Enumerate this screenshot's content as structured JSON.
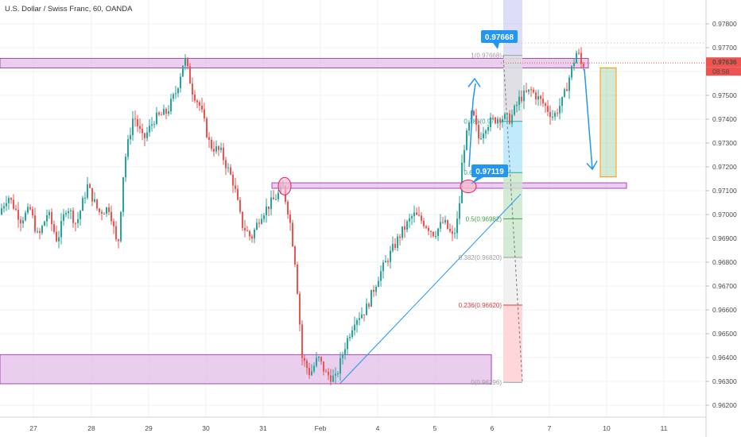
{
  "header": {
    "symbol_title": "U.S. Dollar / Swiss Franc, 60, OANDA"
  },
  "colors": {
    "up": "#26a69a",
    "down": "#ef5350",
    "zone_fill": "#e1bee7",
    "zone_stroke": "#ab47bc",
    "callout": "#2196f3",
    "trendline": "#2196f3",
    "price_badge": "#ef5350",
    "fib_red": "#e53935",
    "fib_green": "#43a047",
    "fib_gray": "#9e9e9e",
    "fib_teal": "#26a69a",
    "target_box": "#a5d6a7",
    "target_border": "#ff9800"
  },
  "chart_data": {
    "type": "candlestick",
    "symbol": "U.S. Dollar / Swiss Franc, 60, OANDA",
    "timeframe": "60",
    "x_tick_labels": [
      "27",
      "28",
      "29",
      "30",
      "31",
      "Feb",
      "4",
      "5",
      "6",
      "7",
      "10",
      "11"
    ],
    "y_tick_labels": [
      "0.97800",
      "0.97700",
      "0.97600",
      "0.97500",
      "0.97400",
      "0.97300",
      "0.97200",
      "0.97100",
      "0.97000",
      "0.96900",
      "0.96800",
      "0.96700",
      "0.96600",
      "0.96500",
      "0.96400",
      "0.96300",
      "0.96200"
    ],
    "ylim": [
      0.9615,
      0.979
    ],
    "current_price": "0.97636",
    "countdown": "08:58",
    "callouts": [
      "0.97668",
      "0.97119"
    ],
    "fibonacci": [
      {
        "label": "1(0.97668)",
        "level": 0.97668,
        "color": "gray"
      },
      {
        "label": "0.786(0.97...)",
        "level": 0.97391,
        "color": "teal"
      },
      {
        "label": "0.618(0.97...)",
        "level": 0.97176,
        "color": "teal"
      },
      {
        "label": "0.5(0.96982)",
        "level": 0.96982,
        "color": "green"
      },
      {
        "label": "0.382(0.96820)",
        "level": 0.9682,
        "color": "gray"
      },
      {
        "label": "0.236(0.96620)",
        "level": 0.9662,
        "color": "red"
      },
      {
        "label": "0(0.96296)",
        "level": 0.96296,
        "color": "gray"
      }
    ],
    "zones": [
      {
        "name": "resistance-zone",
        "top": 0.97655,
        "bottom": 0.97615
      },
      {
        "name": "mid-zone",
        "top": 0.97133,
        "bottom": 0.9711
      },
      {
        "name": "support-zone",
        "top": 0.96412,
        "bottom": 0.9629
      }
    ],
    "anchors": [
      [
        0,
        0.97
      ],
      [
        12,
        0.9708
      ],
      [
        28,
        0.9698
      ],
      [
        40,
        0.9702
      ],
      [
        50,
        0.969
      ],
      [
        62,
        0.9701
      ],
      [
        74,
        0.9689
      ],
      [
        86,
        0.9704
      ],
      [
        98,
        0.9696
      ],
      [
        112,
        0.9712
      ],
      [
        126,
        0.9701
      ],
      [
        140,
        0.9703
      ],
      [
        150,
        0.9685
      ],
      [
        158,
        0.9721
      ],
      [
        170,
        0.9742
      ],
      [
        182,
        0.9731
      ],
      [
        196,
        0.974
      ],
      [
        212,
        0.9743
      ],
      [
        224,
        0.9752
      ],
      [
        234,
        0.9766
      ],
      [
        244,
        0.9752
      ],
      [
        254,
        0.9745
      ],
      [
        266,
        0.9729
      ],
      [
        280,
        0.9726
      ],
      [
        296,
        0.9713
      ],
      [
        306,
        0.9696
      ],
      [
        318,
        0.969
      ],
      [
        330,
        0.97
      ],
      [
        346,
        0.9706
      ],
      [
        358,
        0.9711
      ],
      [
        366,
        0.9699
      ],
      [
        374,
        0.9678
      ],
      [
        382,
        0.964
      ],
      [
        392,
        0.9633
      ],
      [
        402,
        0.964
      ],
      [
        412,
        0.9633
      ],
      [
        424,
        0.9631
      ],
      [
        436,
        0.9645
      ],
      [
        448,
        0.9656
      ],
      [
        462,
        0.966
      ],
      [
        478,
        0.9674
      ],
      [
        492,
        0.9683
      ],
      [
        506,
        0.9692
      ],
      [
        522,
        0.97
      ],
      [
        534,
        0.9697
      ],
      [
        548,
        0.9692
      ],
      [
        560,
        0.9697
      ],
      [
        572,
        0.969
      ],
      [
        579,
        0.97
      ],
      [
        584,
        0.9726
      ],
      [
        596,
        0.9743
      ],
      [
        604,
        0.9732
      ],
      [
        614,
        0.9738
      ],
      [
        630,
        0.9741
      ],
      [
        644,
        0.974
      ],
      [
        656,
        0.9749
      ],
      [
        670,
        0.9752
      ],
      [
        684,
        0.9747
      ],
      [
        698,
        0.9741
      ],
      [
        710,
        0.9748
      ],
      [
        720,
        0.976
      ],
      [
        728,
        0.9769
      ],
      [
        733,
        0.9763
      ]
    ]
  }
}
